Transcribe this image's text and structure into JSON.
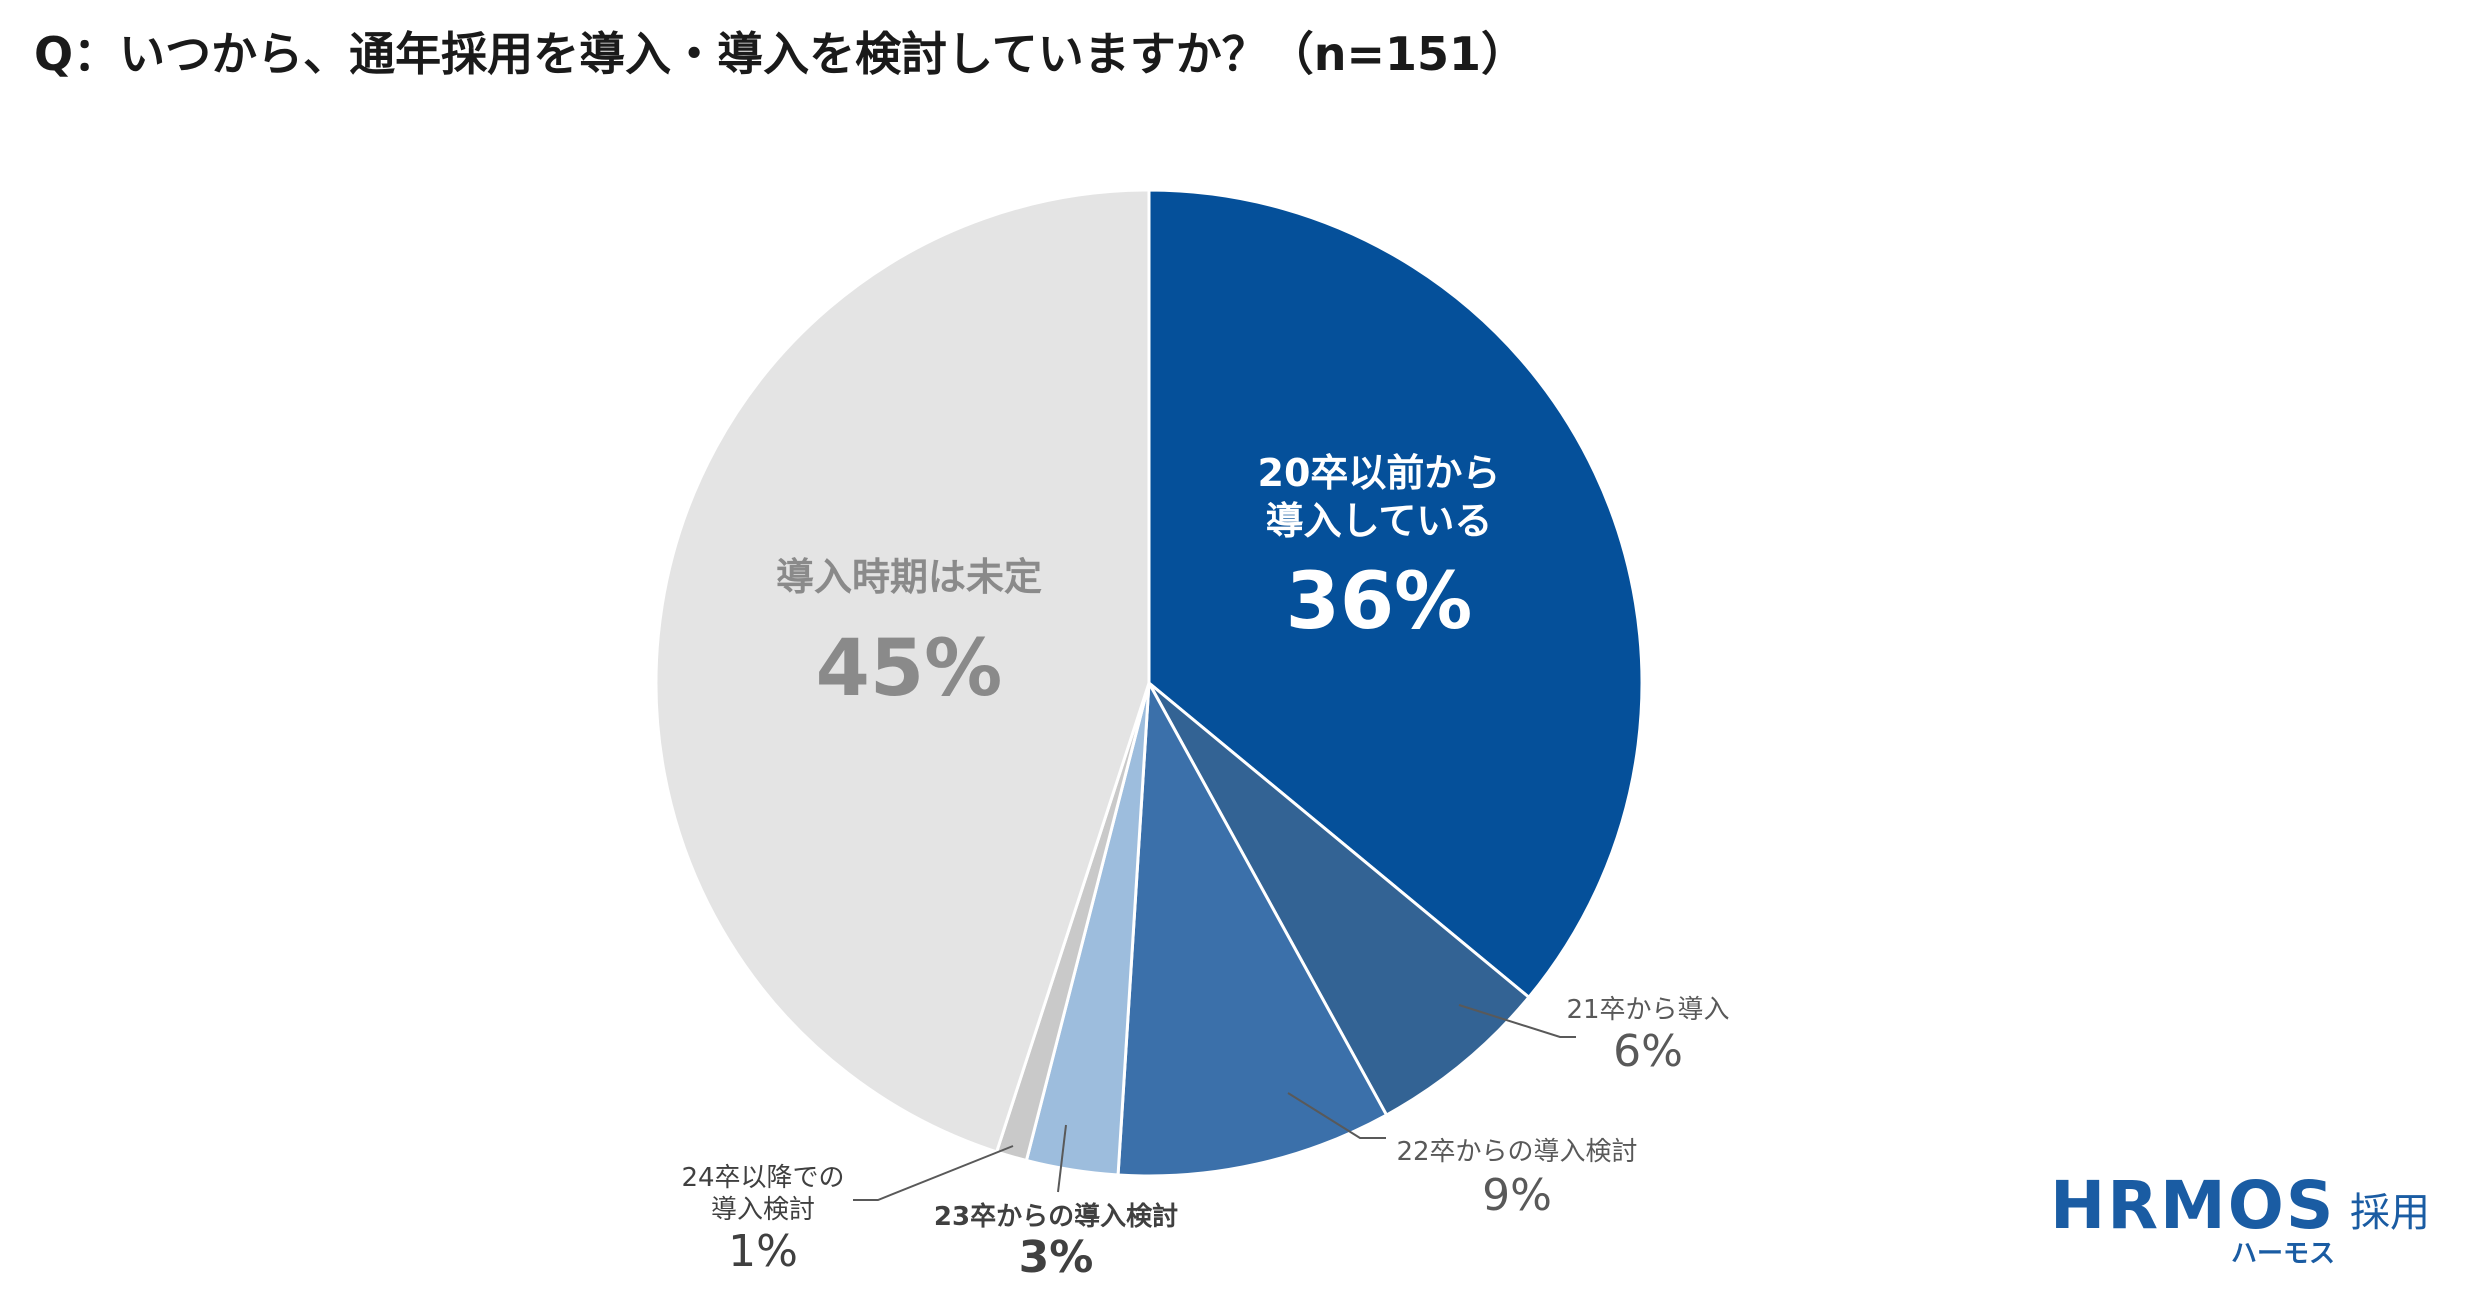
{
  "title": "Q：いつから、通年採用を導入・導入を検討していますか？（n=151）",
  "chart_data": {
    "type": "pie",
    "title": "Q：いつから、通年採用を導入・導入を検討していますか？（n=151）",
    "start": "top",
    "direction": "clockwise",
    "slices": [
      {
        "label_lines": [
          "20卒以前から",
          "導入している"
        ],
        "value": 36,
        "value_label": "36%",
        "color": "#05509a",
        "label_color": "#ffffff"
      },
      {
        "label_lines": [
          "21卒から導入"
        ],
        "value": 6,
        "value_label": "6%",
        "color": "#336394",
        "label_color": "#595959"
      },
      {
        "label_lines": [
          "22卒からの導入検討"
        ],
        "value": 9,
        "value_label": "9%",
        "color": "#3b70aa",
        "label_color": "#595959"
      },
      {
        "label_lines": [
          "23卒からの導入検討"
        ],
        "value": 3,
        "value_label": "3%",
        "color": "#9dbddd",
        "label_color": "#404040"
      },
      {
        "label_lines": [
          "24卒以降での",
          "導入検討"
        ],
        "value": 1,
        "value_label": "1%",
        "color": "#c9c9c9",
        "label_color": "#404040"
      },
      {
        "label_lines": [
          "導入時期は未定"
        ],
        "value": 45,
        "value_label": "45%",
        "color": "#e4e4e4",
        "label_color": "#8a8a8a"
      }
    ]
  },
  "logo": {
    "main": "HRMOS",
    "suffix": "採用",
    "kana": "ハーモス",
    "color": "#1a5ca3"
  }
}
